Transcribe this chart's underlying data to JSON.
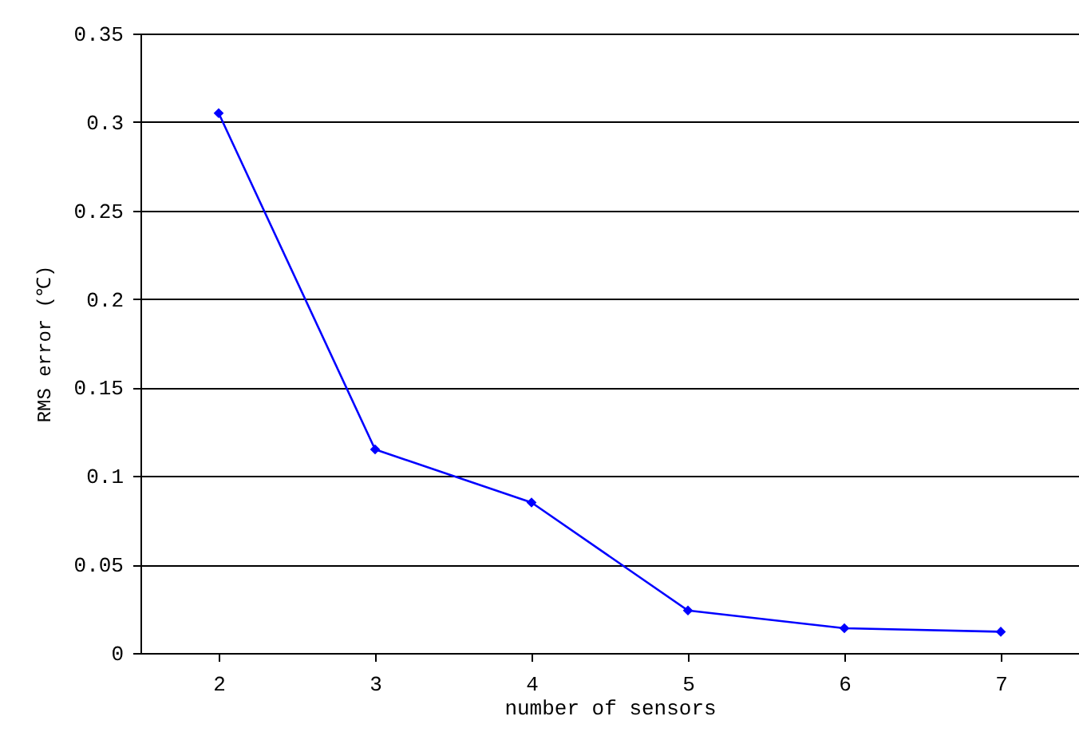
{
  "chart_data": {
    "type": "line",
    "xlabel": "number of sensors",
    "ylabel": "RMS error (℃)",
    "categories": [
      "2",
      "3",
      "4",
      "5",
      "6",
      "7"
    ],
    "series": [
      {
        "color": "#0000ff",
        "values": [
          0.305,
          0.115,
          0.085,
          0.024,
          0.014,
          0.012
        ]
      }
    ],
    "ylim": [
      0,
      0.35
    ],
    "yticks": [
      0,
      0.05,
      0.1,
      0.15,
      0.2,
      0.25,
      0.3,
      0.35
    ],
    "grid": "y",
    "marker": "diamond",
    "line_style": "solid",
    "legend": false
  }
}
